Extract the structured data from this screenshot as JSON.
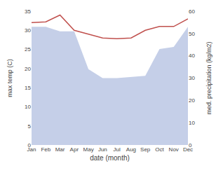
{
  "chart_data": {
    "type": "line",
    "xlabel": "date (month)",
    "ylabel": "max temp (C)",
    "y2label": "med. precipitation (kg/m2)",
    "categories": [
      "Jan",
      "Feb",
      "Mar",
      "Apr",
      "May",
      "Jun",
      "Jul",
      "Aug",
      "Sep",
      "Oct",
      "Nov",
      "Dec"
    ],
    "series": [
      {
        "type": "area",
        "color": "#c5cfe8",
        "axis": "y2",
        "values": [
          53.0,
          53.0,
          51.0,
          51.0,
          34.0,
          30.0,
          30.0,
          30.5,
          31.0,
          43.0,
          44.0,
          53.0
        ]
      },
      {
        "type": "line",
        "color": "#c0504d",
        "values": [
          32.0,
          32.2,
          34.0,
          30.0,
          29.0,
          28.0,
          27.8,
          28.0,
          30.0,
          31.0,
          31.0,
          33.0
        ]
      }
    ],
    "ylim": [
      0,
      35
    ],
    "yticks": [
      0,
      5,
      10,
      15,
      20,
      25,
      30,
      35
    ],
    "y2lim": [
      0,
      60
    ],
    "y2ticks": [
      0,
      10,
      20,
      30,
      40,
      50,
      60
    ],
    "grid": false
  }
}
